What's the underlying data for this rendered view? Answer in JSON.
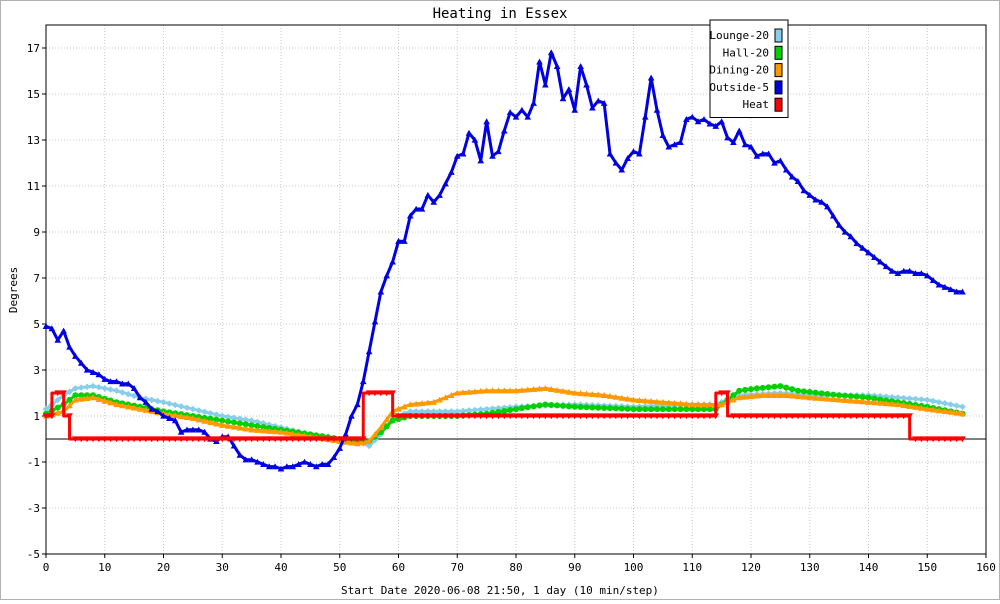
{
  "chart_data": {
    "type": "line",
    "title": "Heating in Essex",
    "xlabel": "Start Date 2020-06-08 21:50, 1 day (10 min/step)",
    "ylabel": "Degrees",
    "xlim": [
      0,
      160
    ],
    "ylim": [
      -5,
      18
    ],
    "xticks": [
      0,
      10,
      20,
      30,
      40,
      50,
      60,
      70,
      80,
      90,
      100,
      110,
      120,
      130,
      140,
      150,
      160
    ],
    "yticks": [
      -5,
      -3,
      -1,
      1,
      3,
      5,
      7,
      9,
      11,
      13,
      15,
      17
    ],
    "grid": true,
    "legend_position": "top-right",
    "baseline": 0,
    "series": [
      {
        "name": "Lounge-20",
        "color": "#87ceeb",
        "marker": "diamond",
        "points": [
          [
            0,
            1.3
          ],
          [
            3,
            1.9
          ],
          [
            5,
            2.2
          ],
          [
            8,
            2.3
          ],
          [
            12,
            2.1
          ],
          [
            16,
            1.8
          ],
          [
            20,
            1.6
          ],
          [
            25,
            1.3
          ],
          [
            30,
            1.0
          ],
          [
            35,
            0.8
          ],
          [
            40,
            0.5
          ],
          [
            45,
            0.2
          ],
          [
            50,
            0.0
          ],
          [
            53,
            -0.1
          ],
          [
            55,
            -0.3
          ],
          [
            57,
            0.2
          ],
          [
            59,
            0.9
          ],
          [
            62,
            1.2
          ],
          [
            70,
            1.2
          ],
          [
            80,
            1.4
          ],
          [
            90,
            1.5
          ],
          [
            100,
            1.4
          ],
          [
            110,
            1.5
          ],
          [
            114,
            1.5
          ],
          [
            116,
            1.7
          ],
          [
            118,
            1.9
          ],
          [
            125,
            2.0
          ],
          [
            130,
            1.9
          ],
          [
            140,
            1.9
          ],
          [
            150,
            1.7
          ],
          [
            156,
            1.4
          ]
        ]
      },
      {
        "name": "Hall-20",
        "color": "#00d000",
        "marker": "circle",
        "points": [
          [
            0,
            1.1
          ],
          [
            3,
            1.5
          ],
          [
            5,
            1.9
          ],
          [
            8,
            1.9
          ],
          [
            12,
            1.6
          ],
          [
            16,
            1.4
          ],
          [
            20,
            1.2
          ],
          [
            25,
            1.0
          ],
          [
            30,
            0.8
          ],
          [
            35,
            0.6
          ],
          [
            40,
            0.4
          ],
          [
            45,
            0.2
          ],
          [
            50,
            0.0
          ],
          [
            53,
            -0.1
          ],
          [
            55,
            -0.1
          ],
          [
            57,
            0.3
          ],
          [
            59,
            0.8
          ],
          [
            62,
            1.0
          ],
          [
            70,
            1.0
          ],
          [
            75,
            1.1
          ],
          [
            80,
            1.3
          ],
          [
            85,
            1.5
          ],
          [
            90,
            1.4
          ],
          [
            100,
            1.3
          ],
          [
            110,
            1.3
          ],
          [
            114,
            1.3
          ],
          [
            116,
            1.7
          ],
          [
            118,
            2.1
          ],
          [
            121,
            2.2
          ],
          [
            125,
            2.3
          ],
          [
            128,
            2.1
          ],
          [
            135,
            1.9
          ],
          [
            140,
            1.8
          ],
          [
            150,
            1.4
          ],
          [
            156,
            1.1
          ]
        ]
      },
      {
        "name": "Dining-20",
        "color": "#ff9900",
        "marker": "triangle-up",
        "points": [
          [
            0,
            1.0
          ],
          [
            3,
            1.2
          ],
          [
            5,
            1.7
          ],
          [
            8,
            1.8
          ],
          [
            12,
            1.5
          ],
          [
            16,
            1.3
          ],
          [
            20,
            1.1
          ],
          [
            25,
            0.9
          ],
          [
            30,
            0.6
          ],
          [
            35,
            0.4
          ],
          [
            40,
            0.3
          ],
          [
            45,
            0.1
          ],
          [
            50,
            -0.1
          ],
          [
            53,
            -0.2
          ],
          [
            55,
            -0.1
          ],
          [
            57,
            0.5
          ],
          [
            59,
            1.2
          ],
          [
            62,
            1.5
          ],
          [
            66,
            1.6
          ],
          [
            70,
            2.0
          ],
          [
            75,
            2.1
          ],
          [
            80,
            2.1
          ],
          [
            85,
            2.2
          ],
          [
            90,
            2.0
          ],
          [
            95,
            1.9
          ],
          [
            100,
            1.7
          ],
          [
            105,
            1.6
          ],
          [
            110,
            1.5
          ],
          [
            115,
            1.5
          ],
          [
            118,
            1.8
          ],
          [
            122,
            1.9
          ],
          [
            126,
            1.9
          ],
          [
            130,
            1.8
          ],
          [
            135,
            1.7
          ],
          [
            140,
            1.6
          ],
          [
            145,
            1.5
          ],
          [
            150,
            1.3
          ],
          [
            156,
            1.1
          ]
        ]
      },
      {
        "name": "Outside-5",
        "color": "#0000e0",
        "marker": "triangle-up",
        "points": [
          [
            0,
            4.9
          ],
          [
            1,
            4.8
          ],
          [
            2,
            4.3
          ],
          [
            3,
            4.7
          ],
          [
            4,
            4.0
          ],
          [
            5,
            3.6
          ],
          [
            6,
            3.3
          ],
          [
            7,
            3.0
          ],
          [
            8,
            2.9
          ],
          [
            9,
            2.8
          ],
          [
            10,
            2.6
          ],
          [
            11,
            2.5
          ],
          [
            12,
            2.5
          ],
          [
            13,
            2.4
          ],
          [
            14,
            2.4
          ],
          [
            15,
            2.2
          ],
          [
            16,
            1.8
          ],
          [
            17,
            1.6
          ],
          [
            18,
            1.3
          ],
          [
            19,
            1.2
          ],
          [
            20,
            1.0
          ],
          [
            21,
            0.9
          ],
          [
            22,
            0.8
          ],
          [
            23,
            0.3
          ],
          [
            24,
            0.4
          ],
          [
            25,
            0.4
          ],
          [
            26,
            0.4
          ],
          [
            27,
            0.3
          ],
          [
            28,
            0.0
          ],
          [
            29,
            -0.1
          ],
          [
            30,
            0.1
          ],
          [
            31,
            0.1
          ],
          [
            32,
            -0.3
          ],
          [
            33,
            -0.7
          ],
          [
            34,
            -0.9
          ],
          [
            35,
            -0.9
          ],
          [
            36,
            -1.0
          ],
          [
            37,
            -1.1
          ],
          [
            38,
            -1.2
          ],
          [
            39,
            -1.2
          ],
          [
            40,
            -1.3
          ],
          [
            41,
            -1.2
          ],
          [
            42,
            -1.2
          ],
          [
            43,
            -1.1
          ],
          [
            44,
            -1.0
          ],
          [
            45,
            -1.1
          ],
          [
            46,
            -1.2
          ],
          [
            47,
            -1.1
          ],
          [
            48,
            -1.1
          ],
          [
            49,
            -0.8
          ],
          [
            50,
            -0.4
          ],
          [
            51,
            0.2
          ],
          [
            52,
            1.0
          ],
          [
            53,
            1.5
          ],
          [
            54,
            2.5
          ],
          [
            55,
            3.8
          ],
          [
            56,
            5.1
          ],
          [
            57,
            6.4
          ],
          [
            58,
            7.1
          ],
          [
            59,
            7.7
          ],
          [
            60,
            8.6
          ],
          [
            61,
            8.6
          ],
          [
            62,
            9.7
          ],
          [
            63,
            10.0
          ],
          [
            64,
            10.0
          ],
          [
            65,
            10.6
          ],
          [
            66,
            10.3
          ],
          [
            67,
            10.6
          ],
          [
            68,
            11.1
          ],
          [
            69,
            11.6
          ],
          [
            70,
            12.3
          ],
          [
            71,
            12.4
          ],
          [
            72,
            13.3
          ],
          [
            73,
            13.0
          ],
          [
            74,
            12.1
          ],
          [
            75,
            13.8
          ],
          [
            76,
            12.3
          ],
          [
            77,
            12.5
          ],
          [
            78,
            13.4
          ],
          [
            79,
            14.2
          ],
          [
            80,
            14.0
          ],
          [
            81,
            14.3
          ],
          [
            82,
            14.0
          ],
          [
            83,
            14.6
          ],
          [
            84,
            16.4
          ],
          [
            85,
            15.4
          ],
          [
            86,
            16.8
          ],
          [
            87,
            16.2
          ],
          [
            88,
            14.8
          ],
          [
            89,
            15.2
          ],
          [
            90,
            14.3
          ],
          [
            91,
            16.2
          ],
          [
            92,
            15.4
          ],
          [
            93,
            14.4
          ],
          [
            94,
            14.7
          ],
          [
            95,
            14.6
          ],
          [
            96,
            12.4
          ],
          [
            97,
            12.0
          ],
          [
            98,
            11.7
          ],
          [
            99,
            12.2
          ],
          [
            100,
            12.5
          ],
          [
            101,
            12.4
          ],
          [
            102,
            14.0
          ],
          [
            103,
            15.7
          ],
          [
            104,
            14.3
          ],
          [
            105,
            13.2
          ],
          [
            106,
            12.7
          ],
          [
            107,
            12.8
          ],
          [
            108,
            12.9
          ],
          [
            109,
            13.9
          ],
          [
            110,
            14.0
          ],
          [
            111,
            13.8
          ],
          [
            112,
            13.9
          ],
          [
            113,
            13.7
          ],
          [
            114,
            13.6
          ],
          [
            115,
            13.8
          ],
          [
            116,
            13.1
          ],
          [
            117,
            12.9
          ],
          [
            118,
            13.4
          ],
          [
            119,
            12.8
          ],
          [
            120,
            12.7
          ],
          [
            121,
            12.3
          ],
          [
            122,
            12.4
          ],
          [
            123,
            12.4
          ],
          [
            124,
            12.0
          ],
          [
            125,
            12.1
          ],
          [
            126,
            11.7
          ],
          [
            127,
            11.4
          ],
          [
            128,
            11.2
          ],
          [
            129,
            10.8
          ],
          [
            130,
            10.6
          ],
          [
            131,
            10.4
          ],
          [
            132,
            10.3
          ],
          [
            133,
            10.1
          ],
          [
            134,
            9.7
          ],
          [
            135,
            9.3
          ],
          [
            136,
            9.0
          ],
          [
            137,
            8.8
          ],
          [
            138,
            8.5
          ],
          [
            139,
            8.3
          ],
          [
            140,
            8.1
          ],
          [
            141,
            7.9
          ],
          [
            142,
            7.7
          ],
          [
            143,
            7.5
          ],
          [
            144,
            7.3
          ],
          [
            145,
            7.2
          ],
          [
            146,
            7.3
          ],
          [
            147,
            7.3
          ],
          [
            148,
            7.2
          ],
          [
            149,
            7.2
          ],
          [
            150,
            7.1
          ],
          [
            151,
            6.9
          ],
          [
            152,
            6.7
          ],
          [
            153,
            6.6
          ],
          [
            154,
            6.5
          ],
          [
            155,
            6.4
          ],
          [
            156,
            6.4
          ]
        ]
      },
      {
        "name": "Heat",
        "color": "#ff0000",
        "marker": "triangle-down",
        "points": [
          [
            0,
            1.0
          ],
          [
            1,
            1.0
          ],
          [
            1.01,
            2.0
          ],
          [
            3,
            2.0
          ],
          [
            3.01,
            1.0
          ],
          [
            4,
            1.0
          ],
          [
            4.01,
            0.0
          ],
          [
            54,
            0.0
          ],
          [
            54.01,
            2.0
          ],
          [
            59,
            2.0
          ],
          [
            59.01,
            1.0
          ],
          [
            114,
            1.0
          ],
          [
            114.01,
            2.0
          ],
          [
            116,
            2.0
          ],
          [
            116.01,
            1.0
          ],
          [
            147,
            1.0
          ],
          [
            147.01,
            0.0
          ],
          [
            156,
            0.0
          ]
        ]
      }
    ]
  }
}
